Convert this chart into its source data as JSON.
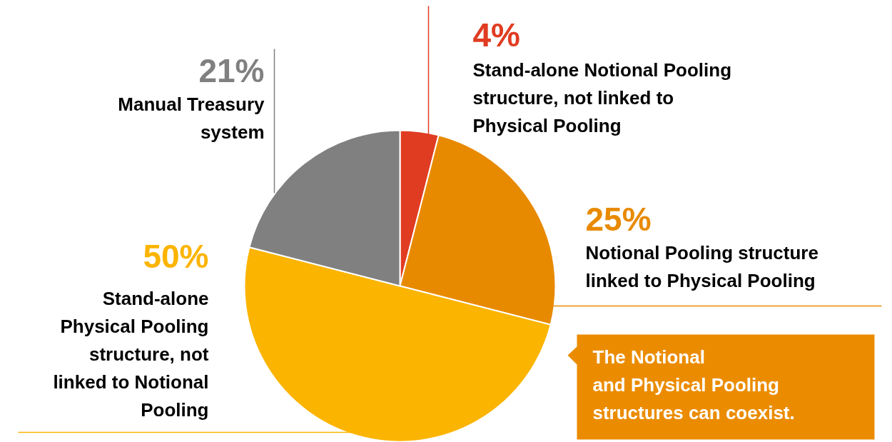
{
  "chart_data": {
    "type": "pie",
    "categories": [
      "Stand-alone Notional Pooling\nstructure, not linked to\nPhysical Pooling",
      "Notional Pooling structure\nlinked to Physical Pooling",
      "Stand-alone\nPhysical Pooling\nstructure, not\nlinked to Notional\nPooling",
      "Manual Treasury\nsystem"
    ],
    "values": [
      4,
      25,
      50,
      21
    ],
    "colors": [
      "#e03c22",
      "#e88a00",
      "#fbb400",
      "#808080"
    ],
    "value_labels": [
      "4%",
      "25%",
      "50%",
      "21%"
    ],
    "annotations": [
      "The Notional\nand Physical Pooling\nstructures can coexist."
    ]
  }
}
